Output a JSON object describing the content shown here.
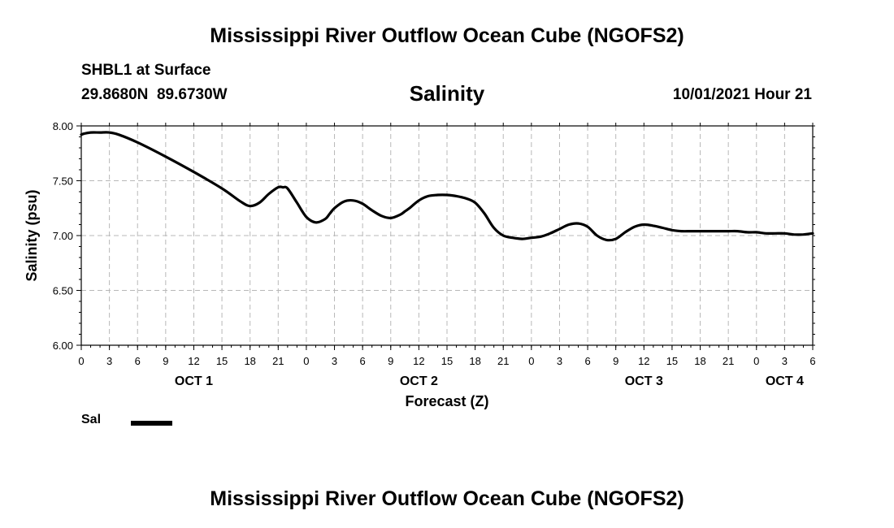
{
  "header": {
    "title": "Mississippi River Outflow Ocean Cube (NGOFS2)",
    "station": "SHBL1",
    "depth": "at Surface",
    "coords": "29.8680N  89.6730W",
    "variable_title": "Salinity",
    "datetime": "10/01/2021 Hour 21"
  },
  "footer": {
    "title": "Mississippi River Outflow Ocean Cube (NGOFS2)"
  },
  "legend": {
    "label": "Sal",
    "color": "#000000"
  },
  "chart_data": {
    "type": "line",
    "title": "Salinity",
    "xlabel": "Forecast (Z)",
    "ylabel": "Salinity (psu)",
    "xlim": [
      0,
      78
    ],
    "ylim": [
      6.0,
      8.0
    ],
    "yticks": [
      "6.00",
      "6.50",
      "7.00",
      "7.50",
      "8.00"
    ],
    "xtick_hours": [
      0,
      3,
      6,
      9,
      12,
      15,
      18,
      21,
      24,
      27,
      30,
      33,
      36,
      39,
      42,
      45,
      48,
      51,
      54,
      57,
      60,
      63,
      66,
      69,
      72,
      75,
      78
    ],
    "xtick_labels": [
      "0",
      "3",
      "6",
      "9",
      "12",
      "15",
      "18",
      "21",
      "0",
      "3",
      "6",
      "9",
      "12",
      "15",
      "18",
      "21",
      "0",
      "3",
      "6",
      "9",
      "12",
      "15",
      "18",
      "21",
      "0",
      "3",
      "6"
    ],
    "day_labels": [
      {
        "label": "OCT 1",
        "hour": 12
      },
      {
        "label": "OCT 2",
        "hour": 36
      },
      {
        "label": "OCT 3",
        "hour": 60
      },
      {
        "label": "OCT 4",
        "hour": 75
      }
    ],
    "grid": true,
    "series": [
      {
        "name": "Sal",
        "x": [
          0,
          0.3,
          1,
          2,
          3,
          4,
          6,
          9,
          12,
          15,
          17,
          18,
          19,
          20,
          21,
          21.5,
          22,
          23,
          24,
          25,
          26,
          26.5,
          27,
          28,
          29,
          30,
          31,
          32,
          33,
          34,
          34.5,
          35,
          36,
          37,
          38,
          39,
          40,
          41,
          42,
          43,
          44,
          45,
          46,
          47,
          48,
          49,
          50,
          51,
          52,
          53,
          54,
          55,
          56,
          57,
          58,
          59,
          60,
          61,
          62,
          63,
          64,
          65,
          66,
          67,
          68,
          69,
          70,
          71,
          72,
          73,
          74,
          75,
          76,
          77,
          78
        ],
        "values": [
          7.92,
          7.93,
          7.94,
          7.94,
          7.94,
          7.92,
          7.85,
          7.72,
          7.58,
          7.43,
          7.31,
          7.27,
          7.3,
          7.38,
          7.44,
          7.44,
          7.43,
          7.3,
          7.17,
          7.12,
          7.15,
          7.2,
          7.25,
          7.31,
          7.32,
          7.29,
          7.23,
          7.18,
          7.16,
          7.19,
          7.22,
          7.25,
          7.32,
          7.36,
          7.37,
          7.37,
          7.36,
          7.34,
          7.3,
          7.2,
          7.07,
          7.0,
          6.98,
          6.97,
          6.98,
          6.99,
          7.02,
          7.06,
          7.1,
          7.11,
          7.08,
          7.0,
          6.96,
          6.97,
          7.03,
          7.08,
          7.1,
          7.09,
          7.07,
          7.05,
          7.04,
          7.04,
          7.04,
          7.04,
          7.04,
          7.04,
          7.04,
          7.03,
          7.03,
          7.02,
          7.02,
          7.02,
          7.01,
          7.01,
          7.02
        ]
      }
    ]
  }
}
